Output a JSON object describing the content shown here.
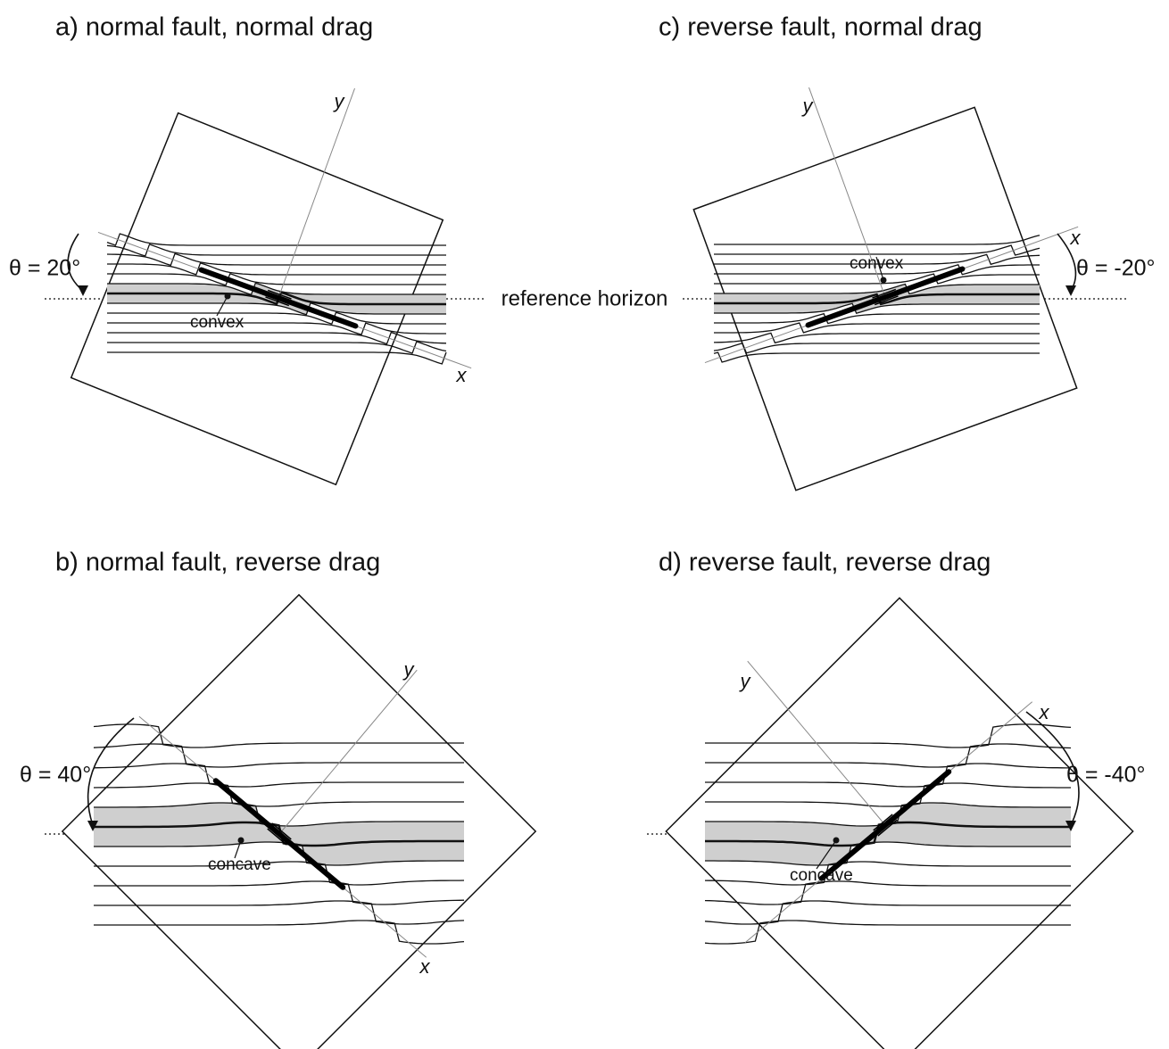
{
  "panels": [
    {
      "title": "a) normal fault, normal drag",
      "angle": "θ = 20°",
      "x_axis": "x",
      "y_axis": "y",
      "curvature": "convex"
    },
    {
      "title": "b) normal fault, reverse drag",
      "angle": "θ = 40°",
      "x_axis": "x",
      "y_axis": "y",
      "curvature": "concave"
    },
    {
      "title": "c) reverse fault, normal drag",
      "angle": "θ = -20°",
      "x_axis": "x",
      "y_axis": "y",
      "curvature": "convex"
    },
    {
      "title": "d) reverse fault, reverse drag",
      "angle": "θ = -40°",
      "x_axis": "x",
      "y_axis": "y",
      "curvature": "concave"
    }
  ],
  "reference_label": "reference horizon"
}
